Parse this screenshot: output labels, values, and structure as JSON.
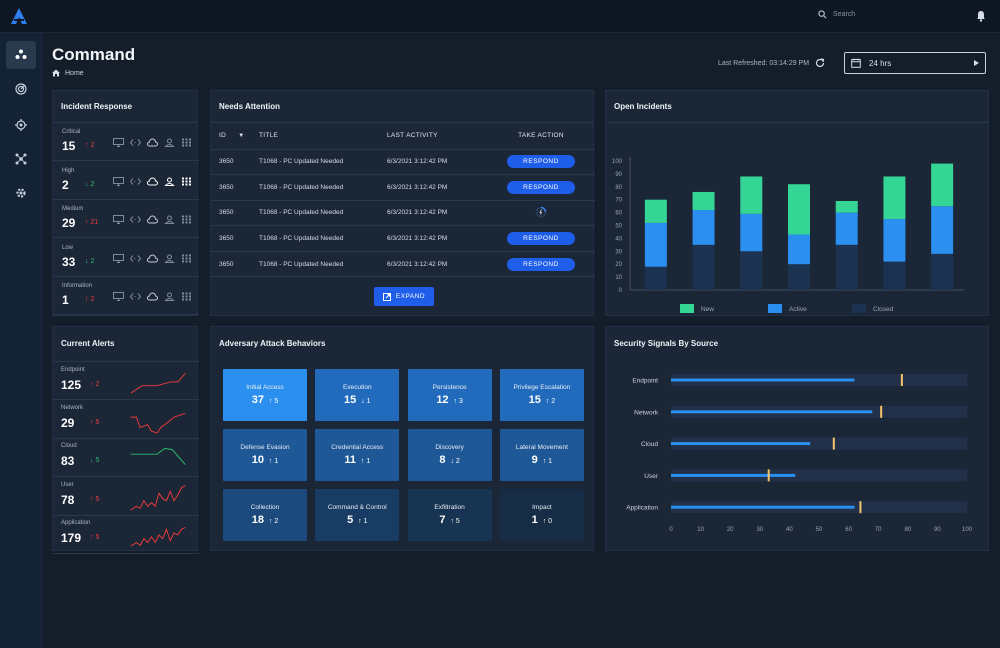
{
  "header": {
    "search_placeholder": "Search"
  },
  "page": {
    "title": "Command",
    "breadcrumb": "Home"
  },
  "refresh": {
    "label": "Last Refreshed: 03:14:29 PM"
  },
  "range": {
    "value": "24 hrs"
  },
  "incident_response": {
    "title": "Incident Response",
    "rows": [
      {
        "name": "Critical",
        "value": "15",
        "delta": "2",
        "dir": "up"
      },
      {
        "name": "High",
        "value": "2",
        "delta": "2",
        "dir": "down"
      },
      {
        "name": "Medium",
        "value": "29",
        "delta": "21",
        "dir": "up"
      },
      {
        "name": "Low",
        "value": "33",
        "delta": "2",
        "dir": "down"
      },
      {
        "name": "Information",
        "value": "1",
        "delta": "2",
        "dir": "up"
      }
    ]
  },
  "needs_attention": {
    "title": "Needs Attention",
    "columns": [
      "ID",
      "TITLE",
      "LAST ACTIVITY",
      "TAKE ACTION"
    ],
    "rows": [
      {
        "id": "3650",
        "title": "T1068 - PC Updated Needed",
        "activity": "6/3/2021 3:12:42 PM",
        "action": "RESPOND"
      },
      {
        "id": "3650",
        "title": "T1068 - PC Updated Needed",
        "activity": "6/3/2021 3:12:42 PM",
        "action": "RESPOND"
      },
      {
        "id": "3650",
        "title": "T1068 - PC Updated Needed",
        "activity": "6/3/2021 3:12:42 PM",
        "action": ""
      },
      {
        "id": "3650",
        "title": "T1068 - PC Updated Needed",
        "activity": "6/3/2021 3:12:42 PM",
        "action": "RESPOND"
      },
      {
        "id": "3650",
        "title": "T1068 - PC Updated Needed",
        "activity": "6/3/2021 3:12:42 PM",
        "action": "RESPOND"
      }
    ],
    "expand_label": "EXPAND"
  },
  "open_incidents": {
    "title": "Open Incidents",
    "chart_data": {
      "type": "bar",
      "stacked": true,
      "categories": [
        "1",
        "2",
        "3",
        "4",
        "5",
        "6",
        "7"
      ],
      "ylim": [
        0,
        100
      ],
      "yticks": [
        0,
        10,
        20,
        30,
        40,
        50,
        60,
        70,
        80,
        90,
        100
      ],
      "series": [
        {
          "name": "Closed",
          "color": "#1b3350",
          "values": [
            18,
            35,
            30,
            20,
            35,
            22,
            28
          ]
        },
        {
          "name": "Active",
          "color": "#2b8ff0",
          "values": [
            34,
            27,
            29,
            23,
            25,
            33,
            37
          ]
        },
        {
          "name": "New",
          "color": "#35d695",
          "values": [
            18,
            14,
            29,
            39,
            9,
            33,
            33
          ]
        }
      ],
      "legend": [
        "New",
        "Active",
        "Closed"
      ]
    }
  },
  "current_alerts": {
    "title": "Current Alerts",
    "rows": [
      {
        "name": "Endpoint",
        "value": "125",
        "delta": "2",
        "dir": "up"
      },
      {
        "name": "Network",
        "value": "29",
        "delta": "5",
        "dir": "up"
      },
      {
        "name": "Cloud",
        "value": "83",
        "delta": "5",
        "dir": "down"
      },
      {
        "name": "User",
        "value": "78",
        "delta": "5",
        "dir": "up"
      },
      {
        "name": "Application",
        "value": "179",
        "delta": "5",
        "dir": "up"
      }
    ]
  },
  "adversary": {
    "title": "Adversary Attack Behaviors",
    "tiles": [
      {
        "name": "Initial Access",
        "value": "37",
        "delta": "5",
        "dir": "up",
        "color": "#2a8fef"
      },
      {
        "name": "Execution",
        "value": "15",
        "delta": "1",
        "dir": "down",
        "color": "#226bbc"
      },
      {
        "name": "Persistence",
        "value": "12",
        "delta": "3",
        "dir": "up",
        "color": "#226bbc"
      },
      {
        "name": "Privilege Escalation",
        "value": "15",
        "delta": "2",
        "dir": "up",
        "color": "#226bbc"
      },
      {
        "name": "Defense Evasion",
        "value": "10",
        "delta": "1",
        "dir": "up",
        "color": "#1f5896"
      },
      {
        "name": "Credential Access",
        "value": "11",
        "delta": "1",
        "dir": "up",
        "color": "#1f5896"
      },
      {
        "name": "Discovery",
        "value": "8",
        "delta": "2",
        "dir": "down",
        "color": "#1f5896"
      },
      {
        "name": "Lateral Movement",
        "value": "9",
        "delta": "1",
        "dir": "up",
        "color": "#1f5896"
      },
      {
        "name": "Collection",
        "value": "18",
        "delta": "2",
        "dir": "up",
        "color": "#1c4a7c"
      },
      {
        "name": "Command & Control",
        "value": "5",
        "delta": "1",
        "dir": "up",
        "color": "#183c63"
      },
      {
        "name": "Exfiltration",
        "value": "7",
        "delta": "5",
        "dir": "up",
        "color": "#173452"
      },
      {
        "name": "Impact",
        "value": "1",
        "delta": "0",
        "dir": "up",
        "color": "#162d45"
      }
    ]
  },
  "signals": {
    "title": "Security Signals By Source",
    "chart_data": {
      "type": "bar",
      "orientation": "horizontal",
      "categories": [
        "Endpoint",
        "Network",
        "Cloud",
        "User",
        "Application"
      ],
      "values": [
        62,
        68,
        47,
        42,
        62
      ],
      "markers": [
        78,
        71,
        55,
        33,
        64
      ],
      "xlim": [
        0,
        100
      ],
      "xticks": [
        0,
        10,
        20,
        30,
        40,
        50,
        60,
        70,
        80,
        90,
        100
      ]
    }
  },
  "colors": {
    "accent": "#1f5ee8",
    "up": "#ee3b3b",
    "down": "#2bbf6e",
    "marker": "#f4c46a"
  }
}
